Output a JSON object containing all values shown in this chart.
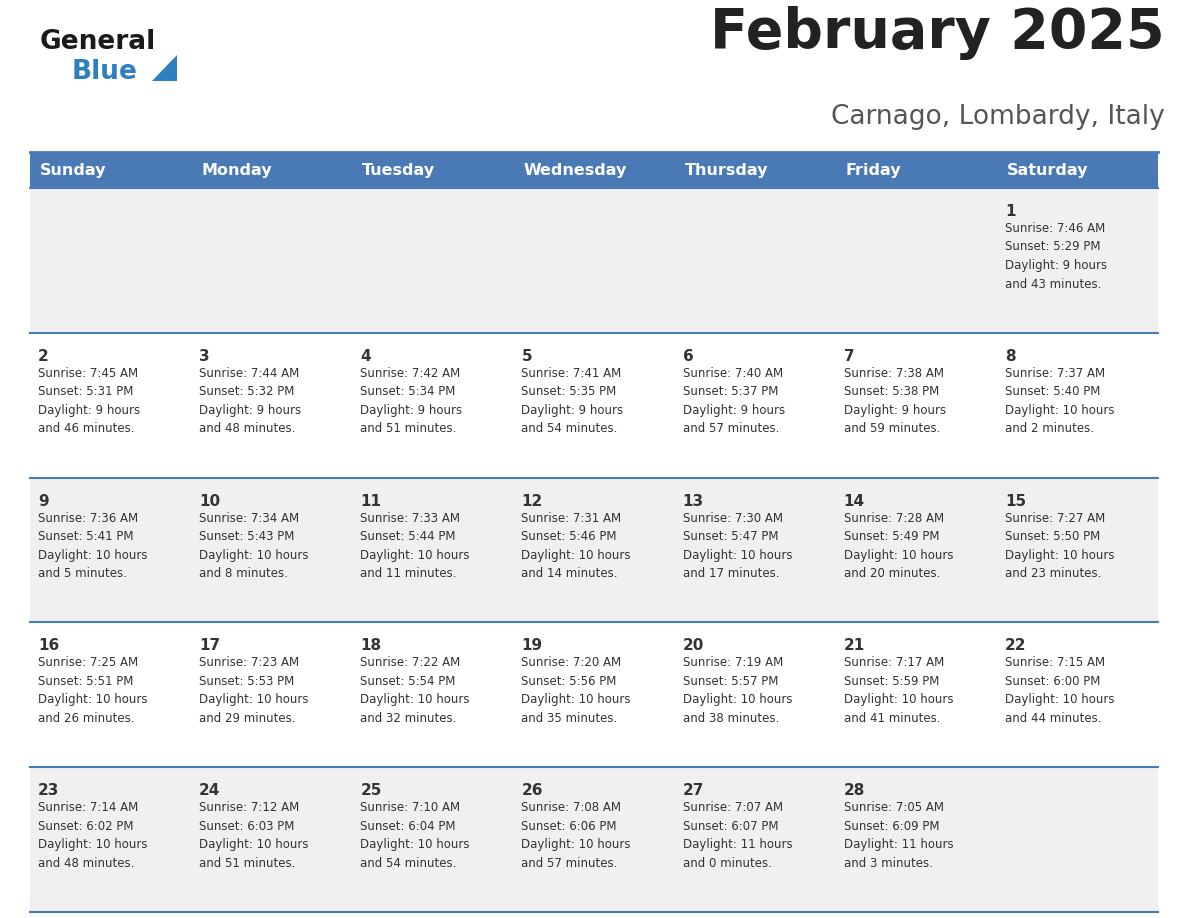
{
  "title": "February 2025",
  "subtitle": "Carnago, Lombardy, Italy",
  "header_color": "#4a7ab5",
  "header_text_color": "#ffffff",
  "cell_bg_odd": "#f0f0f0",
  "cell_bg_even": "#ffffff",
  "separator_color": "#4a7ab5",
  "day_headers": [
    "Sunday",
    "Monday",
    "Tuesday",
    "Wednesday",
    "Thursday",
    "Friday",
    "Saturday"
  ],
  "title_color": "#222222",
  "subtitle_color": "#555555",
  "day_number_color": "#333333",
  "cell_text_color": "#333333",
  "logo_general_color": "#1a1a1a",
  "logo_blue_color": "#2e7fbf",
  "logo_triangle_color": "#2e7fbf",
  "weeks": [
    [
      {
        "day": null,
        "info": ""
      },
      {
        "day": null,
        "info": ""
      },
      {
        "day": null,
        "info": ""
      },
      {
        "day": null,
        "info": ""
      },
      {
        "day": null,
        "info": ""
      },
      {
        "day": null,
        "info": ""
      },
      {
        "day": "1",
        "info": "Sunrise: 7:46 AM\nSunset: 5:29 PM\nDaylight: 9 hours\nand 43 minutes."
      }
    ],
    [
      {
        "day": "2",
        "info": "Sunrise: 7:45 AM\nSunset: 5:31 PM\nDaylight: 9 hours\nand 46 minutes."
      },
      {
        "day": "3",
        "info": "Sunrise: 7:44 AM\nSunset: 5:32 PM\nDaylight: 9 hours\nand 48 minutes."
      },
      {
        "day": "4",
        "info": "Sunrise: 7:42 AM\nSunset: 5:34 PM\nDaylight: 9 hours\nand 51 minutes."
      },
      {
        "day": "5",
        "info": "Sunrise: 7:41 AM\nSunset: 5:35 PM\nDaylight: 9 hours\nand 54 minutes."
      },
      {
        "day": "6",
        "info": "Sunrise: 7:40 AM\nSunset: 5:37 PM\nDaylight: 9 hours\nand 57 minutes."
      },
      {
        "day": "7",
        "info": "Sunrise: 7:38 AM\nSunset: 5:38 PM\nDaylight: 9 hours\nand 59 minutes."
      },
      {
        "day": "8",
        "info": "Sunrise: 7:37 AM\nSunset: 5:40 PM\nDaylight: 10 hours\nand 2 minutes."
      }
    ],
    [
      {
        "day": "9",
        "info": "Sunrise: 7:36 AM\nSunset: 5:41 PM\nDaylight: 10 hours\nand 5 minutes."
      },
      {
        "day": "10",
        "info": "Sunrise: 7:34 AM\nSunset: 5:43 PM\nDaylight: 10 hours\nand 8 minutes."
      },
      {
        "day": "11",
        "info": "Sunrise: 7:33 AM\nSunset: 5:44 PM\nDaylight: 10 hours\nand 11 minutes."
      },
      {
        "day": "12",
        "info": "Sunrise: 7:31 AM\nSunset: 5:46 PM\nDaylight: 10 hours\nand 14 minutes."
      },
      {
        "day": "13",
        "info": "Sunrise: 7:30 AM\nSunset: 5:47 PM\nDaylight: 10 hours\nand 17 minutes."
      },
      {
        "day": "14",
        "info": "Sunrise: 7:28 AM\nSunset: 5:49 PM\nDaylight: 10 hours\nand 20 minutes."
      },
      {
        "day": "15",
        "info": "Sunrise: 7:27 AM\nSunset: 5:50 PM\nDaylight: 10 hours\nand 23 minutes."
      }
    ],
    [
      {
        "day": "16",
        "info": "Sunrise: 7:25 AM\nSunset: 5:51 PM\nDaylight: 10 hours\nand 26 minutes."
      },
      {
        "day": "17",
        "info": "Sunrise: 7:23 AM\nSunset: 5:53 PM\nDaylight: 10 hours\nand 29 minutes."
      },
      {
        "day": "18",
        "info": "Sunrise: 7:22 AM\nSunset: 5:54 PM\nDaylight: 10 hours\nand 32 minutes."
      },
      {
        "day": "19",
        "info": "Sunrise: 7:20 AM\nSunset: 5:56 PM\nDaylight: 10 hours\nand 35 minutes."
      },
      {
        "day": "20",
        "info": "Sunrise: 7:19 AM\nSunset: 5:57 PM\nDaylight: 10 hours\nand 38 minutes."
      },
      {
        "day": "21",
        "info": "Sunrise: 7:17 AM\nSunset: 5:59 PM\nDaylight: 10 hours\nand 41 minutes."
      },
      {
        "day": "22",
        "info": "Sunrise: 7:15 AM\nSunset: 6:00 PM\nDaylight: 10 hours\nand 44 minutes."
      }
    ],
    [
      {
        "day": "23",
        "info": "Sunrise: 7:14 AM\nSunset: 6:02 PM\nDaylight: 10 hours\nand 48 minutes."
      },
      {
        "day": "24",
        "info": "Sunrise: 7:12 AM\nSunset: 6:03 PM\nDaylight: 10 hours\nand 51 minutes."
      },
      {
        "day": "25",
        "info": "Sunrise: 7:10 AM\nSunset: 6:04 PM\nDaylight: 10 hours\nand 54 minutes."
      },
      {
        "day": "26",
        "info": "Sunrise: 7:08 AM\nSunset: 6:06 PM\nDaylight: 10 hours\nand 57 minutes."
      },
      {
        "day": "27",
        "info": "Sunrise: 7:07 AM\nSunset: 6:07 PM\nDaylight: 11 hours\nand 0 minutes."
      },
      {
        "day": "28",
        "info": "Sunrise: 7:05 AM\nSunset: 6:09 PM\nDaylight: 11 hours\nand 3 minutes."
      },
      {
        "day": null,
        "info": ""
      }
    ]
  ]
}
